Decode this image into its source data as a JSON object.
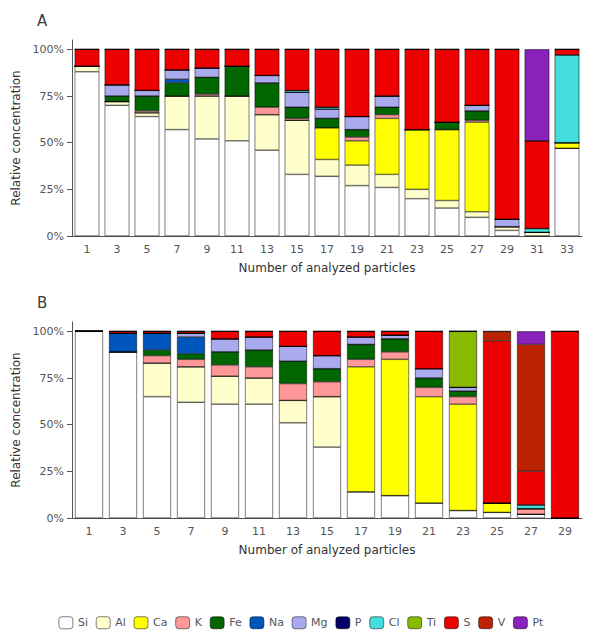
{
  "chart_data": [
    {
      "type": "bar",
      "title": "A",
      "stacked": true,
      "grid": false,
      "xlabel": "Number of analyzed particles",
      "ylabel": "Relative concentration",
      "categories": [
        1,
        3,
        5,
        7,
        9,
        11,
        13,
        15,
        17,
        19,
        21,
        23,
        25,
        27,
        29,
        31,
        33
      ],
      "ylim": [
        0,
        105
      ],
      "yticks": [
        {
          "value": 0,
          "label": "0%"
        },
        {
          "value": 25,
          "label": "25%"
        },
        {
          "value": 50,
          "label": "50%"
        },
        {
          "value": 75,
          "label": "75%"
        },
        {
          "value": 100,
          "label": "100%"
        }
      ],
      "series": [
        {
          "name": "Si",
          "color": "#FFFFFF",
          "values": [
            88,
            70,
            64,
            57,
            52,
            51,
            46,
            33,
            32,
            27,
            26,
            20,
            15,
            10,
            3,
            0,
            47
          ]
        },
        {
          "name": "Al",
          "color": "#FFFFCC",
          "values": [
            3,
            2,
            2,
            18,
            23,
            24,
            19,
            29,
            9,
            11,
            7,
            5,
            4,
            3,
            2,
            2,
            0
          ]
        },
        {
          "name": "Ca",
          "color": "#FFFF00",
          "values": [
            0,
            0,
            0,
            0,
            0,
            0,
            0,
            0,
            17,
            13,
            30,
            32,
            38,
            48,
            0,
            0,
            3
          ]
        },
        {
          "name": "K",
          "color": "#FF9999",
          "values": [
            0,
            0,
            1,
            0,
            1,
            0,
            4,
            1,
            0,
            2,
            2,
            0,
            0,
            1,
            0,
            0,
            0
          ]
        },
        {
          "name": "Fe",
          "color": "#006600",
          "values": [
            0,
            3,
            8,
            7,
            9,
            16,
            13,
            6,
            5,
            4,
            4,
            0,
            4,
            5,
            0,
            0,
            0
          ]
        },
        {
          "name": "Na",
          "color": "#0055BB",
          "values": [
            0,
            0,
            0,
            2,
            0,
            0,
            0,
            0,
            0,
            0,
            0,
            0,
            0,
            0,
            0,
            0,
            0
          ]
        },
        {
          "name": "Mg",
          "color": "#AAAAEE",
          "values": [
            0,
            6,
            3,
            5,
            5,
            0,
            4,
            8,
            5,
            7,
            6,
            0,
            0,
            3,
            4,
            0,
            0
          ]
        },
        {
          "name": "P",
          "color": "#000066",
          "values": [
            0,
            0,
            0,
            0,
            0,
            0,
            0,
            0,
            0,
            0,
            0,
            0,
            0,
            0,
            0,
            0,
            0
          ]
        },
        {
          "name": "Cl",
          "color": "#44DDDD",
          "values": [
            0,
            0,
            0,
            0,
            0,
            0,
            0,
            1,
            1,
            0,
            0,
            0,
            0,
            0,
            0,
            2,
            47
          ]
        },
        {
          "name": "Ti",
          "color": "#88BB00",
          "values": [
            0,
            0,
            0,
            0,
            0,
            0,
            0,
            0,
            0,
            0,
            0,
            0,
            0,
            0,
            0,
            0,
            0
          ]
        },
        {
          "name": "S",
          "color": "#EE0000",
          "values": [
            9,
            19,
            22,
            11,
            10,
            9,
            14,
            22,
            31,
            36,
            25,
            43,
            39,
            30,
            91,
            47,
            3
          ]
        },
        {
          "name": "V",
          "color": "#BB2200",
          "values": [
            0,
            0,
            0,
            0,
            0,
            0,
            0,
            0,
            0,
            0,
            0,
            0,
            0,
            0,
            0,
            0,
            0
          ]
        },
        {
          "name": "Pt",
          "color": "#8822BB",
          "values": [
            0,
            0,
            0,
            0,
            0,
            0,
            0,
            0,
            0,
            0,
            0,
            0,
            0,
            0,
            0,
            49,
            0
          ]
        }
      ]
    },
    {
      "type": "bar",
      "title": "B",
      "stacked": true,
      "grid": false,
      "legend": "bottom",
      "xlabel": "Number of analyzed particles",
      "ylabel": "Relative concentration",
      "categories": [
        1,
        3,
        5,
        7,
        9,
        11,
        13,
        15,
        17,
        19,
        21,
        23,
        25,
        27,
        29
      ],
      "ylim": [
        0,
        105
      ],
      "yticks": [
        {
          "value": 0,
          "label": "0%"
        },
        {
          "value": 25,
          "label": "25%"
        },
        {
          "value": 50,
          "label": "50%"
        },
        {
          "value": 75,
          "label": "75%"
        },
        {
          "value": 100,
          "label": "100%"
        }
      ],
      "series": [
        {
          "name": "Si",
          "color": "#FFFFFF",
          "values": [
            100,
            89,
            65,
            62,
            61,
            61,
            51,
            38,
            14,
            12,
            8,
            4,
            3,
            2,
            0
          ]
        },
        {
          "name": "Al",
          "color": "#FFFFCC",
          "values": [
            0,
            0,
            18,
            19,
            15,
            14,
            12,
            27,
            0,
            0,
            0,
            0,
            0,
            0,
            0
          ]
        },
        {
          "name": "Ca",
          "color": "#FFFF00",
          "values": [
            0,
            0,
            0,
            0,
            0,
            0,
            0,
            0,
            67,
            73,
            57,
            57,
            5,
            0,
            0
          ]
        },
        {
          "name": "K",
          "color": "#FF9999",
          "values": [
            0,
            0,
            4,
            4,
            6,
            6,
            9,
            8,
            4,
            4,
            5,
            4,
            0,
            3,
            0
          ]
        },
        {
          "name": "Fe",
          "color": "#006600",
          "values": [
            0,
            0,
            3,
            3,
            7,
            9,
            12,
            7,
            8,
            7,
            5,
            3,
            0,
            0,
            0
          ]
        },
        {
          "name": "Na",
          "color": "#0055BB",
          "values": [
            0,
            10,
            9,
            9,
            0,
            0,
            0,
            0,
            0,
            0,
            0,
            0,
            0,
            0,
            0
          ]
        },
        {
          "name": "Mg",
          "color": "#AAAAEE",
          "values": [
            0,
            0,
            0,
            2,
            7,
            7,
            8,
            7,
            4,
            2,
            5,
            2,
            0,
            0,
            0
          ]
        },
        {
          "name": "P",
          "color": "#000066",
          "values": [
            0,
            0,
            0,
            0,
            0,
            0,
            0,
            0,
            0,
            0,
            0,
            0,
            0,
            0,
            0
          ]
        },
        {
          "name": "Cl",
          "color": "#44DDDD",
          "values": [
            0,
            0,
            0,
            0,
            0,
            0,
            0,
            0,
            0,
            0,
            0,
            0,
            0,
            2,
            0
          ]
        },
        {
          "name": "Ti",
          "color": "#88BB00",
          "values": [
            0,
            0,
            0,
            0,
            0,
            0,
            0,
            0,
            0,
            0,
            0,
            30,
            0,
            0,
            0
          ]
        },
        {
          "name": "S",
          "color": "#EE0000",
          "values": [
            0,
            1,
            1,
            1,
            4,
            3,
            8,
            13,
            3,
            2,
            20,
            0,
            87,
            18,
            100
          ]
        },
        {
          "name": "V",
          "color": "#BB2200",
          "values": [
            0,
            0,
            0,
            0,
            0,
            0,
            0,
            0,
            0,
            0,
            0,
            0,
            5,
            68,
            0
          ]
        },
        {
          "name": "Pt",
          "color": "#8822BB",
          "values": [
            0,
            0,
            0,
            0,
            0,
            0,
            0,
            0,
            0,
            0,
            0,
            0,
            0,
            7,
            0
          ]
        }
      ]
    }
  ]
}
